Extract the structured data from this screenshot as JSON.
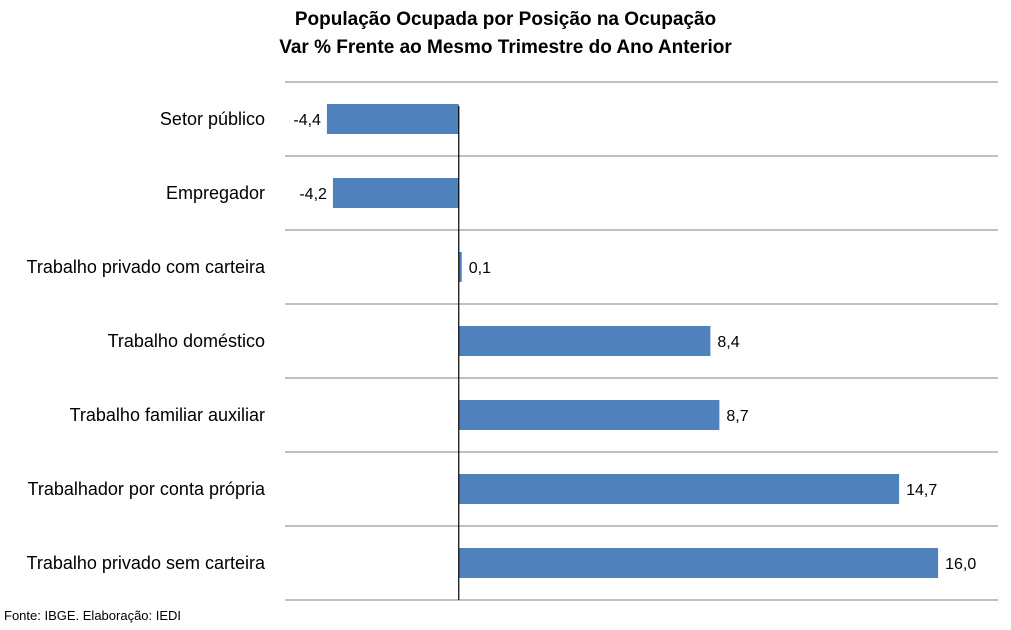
{
  "chart_data": {
    "type": "bar",
    "orientation": "horizontal",
    "title": "População Ocupada por Posição na Ocupação",
    "subtitle": "Var % Frente ao Mesmo Trimestre do Ano Anterior",
    "categories": [
      "Setor público",
      "Empregador",
      "Trabalho privado com carteira",
      "Trabalho doméstico",
      "Trabalho familiar auxiliar",
      "Trabalhador por conta própria",
      "Trabalho privado sem carteira"
    ],
    "values": [
      -4.4,
      -4.2,
      0.1,
      8.4,
      8.7,
      14.7,
      16.0
    ],
    "data_labels": [
      "-4,4",
      "-4,2",
      "0,1",
      "8,4",
      "8,7",
      "14,7",
      "16,0"
    ],
    "xlim": [
      -5.8,
      18.0
    ],
    "grid": true,
    "bar_color": "#4f81bd"
  },
  "source": "Fonte: IBGE. Elaboração: IEDI"
}
